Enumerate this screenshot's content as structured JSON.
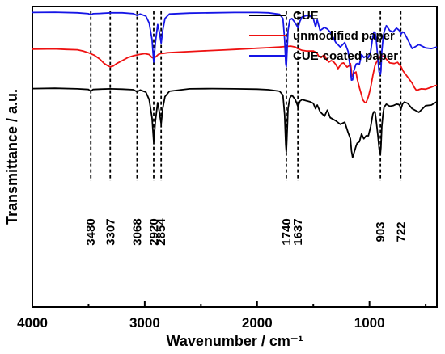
{
  "chart_data": {
    "type": "line",
    "xlabel": "Wavenumber / cm⁻¹",
    "ylabel": "Transmittance / a.u.",
    "xlim": [
      4000,
      400
    ],
    "x_reversed": true,
    "ylim": [
      0,
      100
    ],
    "y_ticks_labeled": false,
    "grid": false,
    "legend_position": "top-right",
    "x_ticks": [
      "4000",
      "3000",
      "2000",
      "1000"
    ],
    "x_tick_values": [
      4000,
      3000,
      2000,
      1000
    ],
    "series": [
      {
        "name": "CUE",
        "color": "#000000",
        "x": [
          4000,
          3800,
          3600,
          3500,
          3480,
          3460,
          3400,
          3307,
          3200,
          3100,
          3068,
          3040,
          2990,
          2960,
          2935,
          2920,
          2905,
          2885,
          2870,
          2854,
          2840,
          2820,
          2780,
          2600,
          2400,
          2200,
          2000,
          1900,
          1800,
          1770,
          1755,
          1745,
          1740,
          1735,
          1725,
          1710,
          1690,
          1660,
          1645,
          1637,
          1630,
          1620,
          1600,
          1560,
          1530,
          1500,
          1480,
          1465,
          1440,
          1400,
          1375,
          1350,
          1300,
          1260,
          1220,
          1190,
          1170,
          1160,
          1150,
          1140,
          1120,
          1110,
          1090,
          1070,
          1050,
          1030,
          1010,
          990,
          970,
          960,
          950,
          940,
          925,
          915,
          908,
          903,
          898,
          890,
          880,
          870,
          850,
          820,
          790,
          760,
          740,
          730,
          722,
          715,
          705,
          690,
          660,
          620,
          560,
          500,
          450,
          400
        ],
        "values": [
          72.7,
          72.8,
          72.6,
          72.4,
          71.8,
          72.4,
          72.5,
          72.6,
          72.5,
          72.3,
          71.6,
          72.2,
          71.5,
          69,
          63,
          55,
          62,
          68,
          65,
          61,
          66,
          70,
          71.8,
          72.6,
          72.7,
          72.6,
          72.5,
          72.3,
          71.8,
          70.5,
          64,
          54,
          51.6,
          56,
          66,
          69.5,
          70.5,
          69,
          67.5,
          66.7,
          67.3,
          68.5,
          69,
          68.6,
          68.3,
          67.8,
          66,
          67.2,
          65,
          63.5,
          65.5,
          63,
          62,
          60.8,
          61.5,
          58,
          56,
          52,
          49.8,
          51,
          53.5,
          54.5,
          55,
          57.6,
          56,
          57,
          57,
          60,
          64.2,
          65,
          64.8,
          62,
          57,
          53,
          51,
          50.9,
          53,
          60,
          64,
          66.5,
          67.5,
          66.8,
          67,
          67.5,
          67.4,
          67,
          65.5,
          66.5,
          67.6,
          68.2,
          67.8,
          66,
          64.8,
          67,
          67.2,
          68.3
        ]
      },
      {
        "name": "unmodified paper",
        "color": "#ee1111",
        "x": [
          4000,
          3800,
          3700,
          3600,
          3550,
          3500,
          3450,
          3400,
          3360,
          3330,
          3307,
          3280,
          3250,
          3200,
          3150,
          3100,
          3050,
          3000,
          2960,
          2935,
          2920,
          2900,
          2880,
          2860,
          2830,
          2800,
          2700,
          2500,
          2300,
          2200,
          2100,
          2000,
          1900,
          1800,
          1740,
          1700,
          1660,
          1640,
          1600,
          1560,
          1500,
          1470,
          1450,
          1430,
          1410,
          1400,
          1380,
          1360,
          1340,
          1320,
          1300,
          1280,
          1250,
          1230,
          1200,
          1180,
          1170,
          1162,
          1158,
          1150,
          1120,
          1110,
          1090,
          1070,
          1060,
          1050,
          1040,
          1030,
          1010,
          990,
          970,
          950,
          930,
          910,
          890,
          870,
          850,
          820,
          780,
          750,
          720,
          700,
          660,
          620,
          600,
          580,
          560,
          540,
          500,
          460,
          420,
          400
        ],
        "values": [
          85.8,
          85.9,
          85.7,
          85.6,
          85.2,
          84.6,
          83.8,
          82.5,
          81,
          80.3,
          79.9,
          80.2,
          81,
          82,
          83,
          83.6,
          84,
          84.3,
          84,
          83,
          82.8,
          83.3,
          84,
          84.3,
          84.4,
          84.6,
          84.8,
          85.2,
          85.5,
          85.7,
          85.9,
          86.1,
          86.3,
          86.5,
          86.7,
          86.8,
          86.5,
          86,
          85.4,
          85.2,
          85.2,
          84.6,
          83.4,
          83,
          83.7,
          83.8,
          82.2,
          81.5,
          82,
          81.6,
          80.7,
          79.3,
          81,
          81.2,
          79.8,
          80.3,
          81,
          79,
          76.8,
          77.5,
          78.2,
          76,
          73,
          70.5,
          69,
          68.5,
          68,
          68,
          70,
          73,
          77,
          80.5,
          82,
          83.2,
          83.6,
          83.3,
          82.5,
          81.2,
          81,
          81.4,
          80,
          78.5,
          76.5,
          74.5,
          73,
          72,
          72.4,
          72.6,
          72.5,
          73,
          73.6,
          73.8
        ]
      },
      {
        "name": "CUE-coated paper",
        "color": "#1515e6",
        "x": [
          4000,
          3800,
          3600,
          3500,
          3480,
          3460,
          3400,
          3300,
          3200,
          3100,
          3068,
          3040,
          2990,
          2960,
          2935,
          2920,
          2905,
          2885,
          2870,
          2854,
          2840,
          2820,
          2780,
          2600,
          2400,
          2200,
          2000,
          1900,
          1800,
          1770,
          1755,
          1745,
          1740,
          1735,
          1725,
          1710,
          1690,
          1660,
          1645,
          1637,
          1630,
          1620,
          1600,
          1560,
          1530,
          1500,
          1480,
          1465,
          1440,
          1400,
          1375,
          1350,
          1300,
          1260,
          1220,
          1190,
          1170,
          1160,
          1150,
          1140,
          1120,
          1110,
          1090,
          1070,
          1050,
          1030,
          1010,
          990,
          970,
          960,
          950,
          940,
          925,
          915,
          908,
          903,
          898,
          890,
          880,
          870,
          850,
          820,
          790,
          760,
          740,
          730,
          722,
          715,
          705,
          690,
          660,
          620,
          560,
          500,
          450,
          400
        ],
        "values": [
          98,
          98.1,
          97.9,
          97.6,
          97.2,
          97.6,
          97.7,
          97.9,
          97.9,
          97.6,
          97,
          97.5,
          96.8,
          94.5,
          89,
          81.5,
          88,
          94,
          91.5,
          87.8,
          92,
          96,
          97.5,
          97.8,
          97.9,
          98,
          98,
          97.9,
          97.4,
          96,
          89,
          81,
          80,
          84,
          92,
          95.5,
          96,
          94.5,
          93.5,
          92.9,
          93.6,
          95,
          96.5,
          97,
          96.8,
          96,
          93.2,
          95.5,
          92,
          93,
          92.5,
          91.5,
          88,
          86.5,
          88,
          85,
          79,
          75.5,
          75.6,
          78.5,
          80.8,
          81,
          80.8,
          84,
          83,
          83.5,
          83,
          85,
          90,
          91.5,
          91.3,
          89,
          82.5,
          78.3,
          77.5,
          77.4,
          78.5,
          85,
          89,
          91.5,
          93.6,
          92,
          91.5,
          92.8,
          92.2,
          91.8,
          90.7,
          91,
          91.5,
          91.2,
          89,
          86,
          87.3,
          86.2,
          86,
          86.5
        ]
      }
    ],
    "annotations": [
      {
        "label": "3480",
        "x": 3480
      },
      {
        "label": "3307",
        "x": 3307
      },
      {
        "label": "3068",
        "x": 3068
      },
      {
        "label": "2920",
        "x": 2920
      },
      {
        "label": "2854",
        "x": 2854
      },
      {
        "label": "1740",
        "x": 1740
      },
      {
        "label": "1637",
        "x": 1637
      },
      {
        "label": "903",
        "x": 903
      },
      {
        "label": "722",
        "x": 722
      }
    ]
  }
}
